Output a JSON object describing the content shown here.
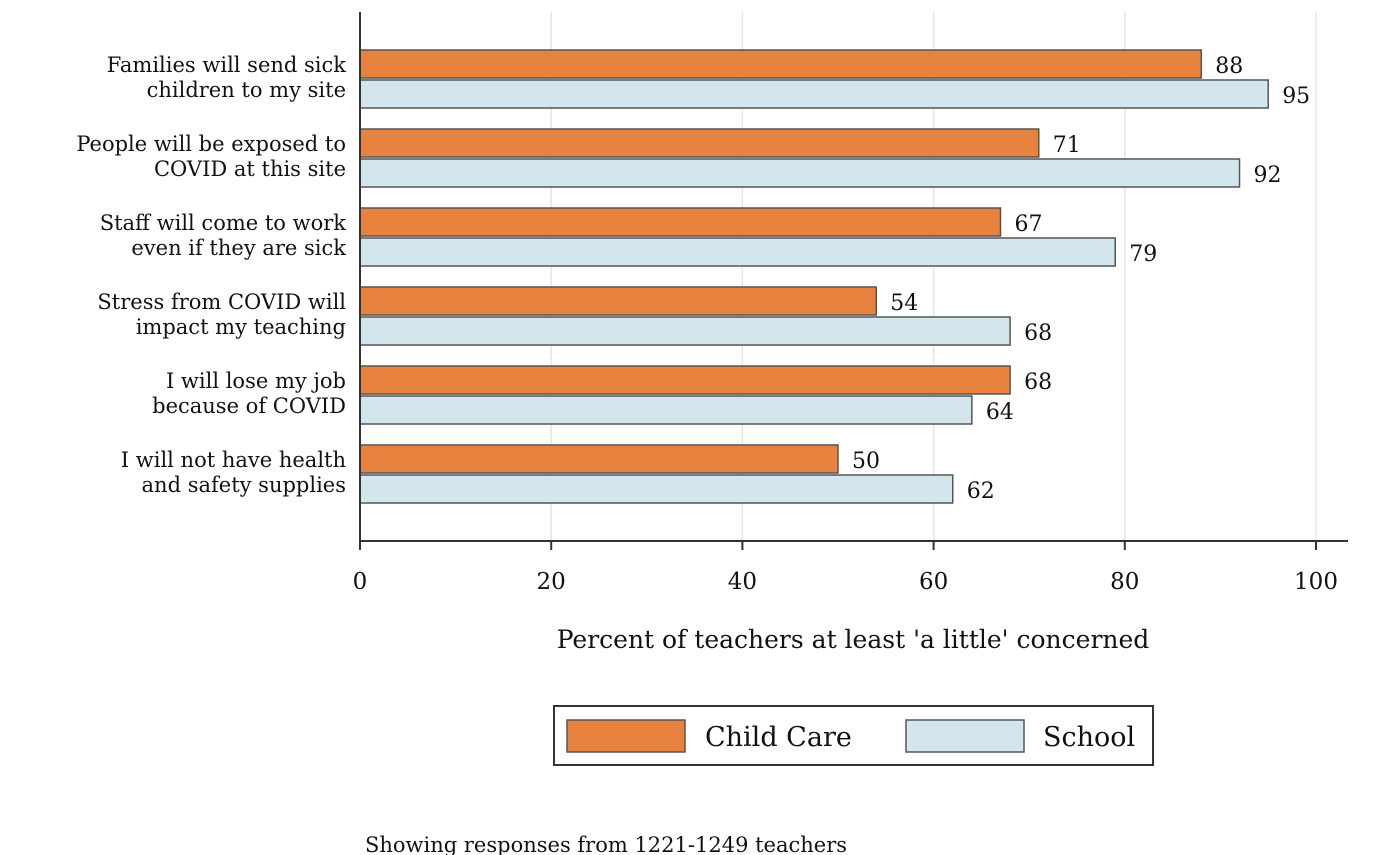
{
  "chart_data": {
    "type": "bar",
    "orientation": "horizontal",
    "categories": [
      [
        "Families will send sick",
        "children to my site"
      ],
      [
        "People will be exposed to",
        "COVID at this site"
      ],
      [
        "Staff will come to work",
        "even if they are sick"
      ],
      [
        "Stress from COVID will",
        "impact my teaching"
      ],
      [
        "I will lose my job",
        "because of COVID"
      ],
      [
        "I will not have health",
        "and safety supplies"
      ]
    ],
    "series": [
      {
        "name": "Child Care",
        "color": "#E8833F",
        "values": [
          88,
          71,
          67,
          54,
          68,
          50
        ]
      },
      {
        "name": "School",
        "color": "#D3E6EE",
        "values": [
          95,
          92,
          79,
          68,
          64,
          62
        ]
      }
    ],
    "title": "",
    "xlabel": "Percent of teachers at least 'a little' concerned",
    "ylabel": "",
    "xlim": [
      0,
      100
    ],
    "xticks": [
      "0",
      "20",
      "40",
      "60",
      "80",
      "100"
    ],
    "grid": true,
    "legend_placement": "bottom",
    "note": "Showing responses from 1221-1249 teachers"
  }
}
